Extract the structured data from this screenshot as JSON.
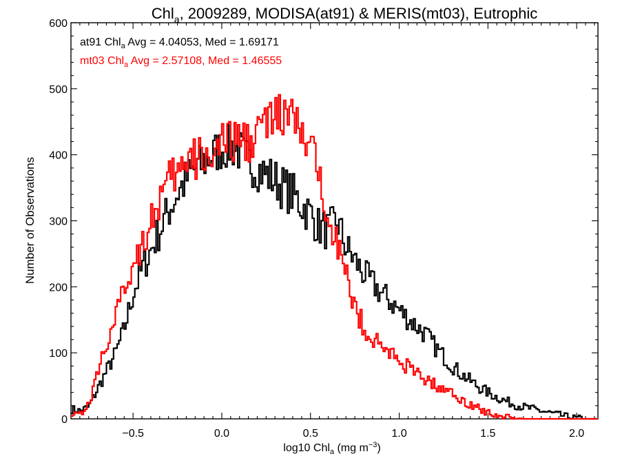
{
  "chart_data": {
    "type": "histogram",
    "title": {
      "prefix": "Chl",
      "sub": "a",
      "rest": ", 2009289, MODISA(at91) & MERIS(mt03), Eutrophic"
    },
    "xlabel": {
      "prefix": "log10 Chl",
      "sub": "a",
      "mid": " (mg m",
      "sup": "−3",
      "end": ")"
    },
    "ylabel": "Number of Observations",
    "xlim": [
      -0.85,
      2.12
    ],
    "ylim": [
      0,
      600
    ],
    "xticks": [
      -0.5,
      0.0,
      0.5,
      1.0,
      1.5,
      2.0
    ],
    "xtick_labels": [
      "−0.5",
      "0.0",
      "0.5",
      "1.0",
      "1.5",
      "2.0"
    ],
    "yticks": [
      0,
      100,
      200,
      300,
      400,
      500,
      600
    ],
    "ytick_labels": [
      "0",
      "100",
      "200",
      "300",
      "400",
      "500",
      "600"
    ],
    "legend_position": "top-left",
    "series": [
      {
        "name": "at91",
        "color": "#000000",
        "stats": {
          "prefix": "at91 Chl",
          "sub": "a",
          "rest": " Avg = 4.04053, Med = 1.69171"
        },
        "profile": [
          [
            -0.85,
            15
          ],
          [
            -0.8,
            12
          ],
          [
            -0.75,
            18
          ],
          [
            -0.7,
            45
          ],
          [
            -0.65,
            72
          ],
          [
            -0.6,
            98
          ],
          [
            -0.55,
            135
          ],
          [
            -0.5,
            190
          ],
          [
            -0.45,
            225
          ],
          [
            -0.4,
            255
          ],
          [
            -0.35,
            285
          ],
          [
            -0.3,
            315
          ],
          [
            -0.25,
            342
          ],
          [
            -0.2,
            362
          ],
          [
            -0.15,
            378
          ],
          [
            -0.1,
            388
          ],
          [
            -0.05,
            400
          ],
          [
            0.0,
            410
          ],
          [
            0.05,
            412
          ],
          [
            0.1,
            405
          ],
          [
            0.15,
            390
          ],
          [
            0.2,
            380
          ],
          [
            0.25,
            370
          ],
          [
            0.3,
            362
          ],
          [
            0.35,
            350
          ],
          [
            0.4,
            340
          ],
          [
            0.45,
            325
          ],
          [
            0.5,
            310
          ],
          [
            0.55,
            290
          ],
          [
            0.6,
            285
          ],
          [
            0.65,
            300
          ],
          [
            0.7,
            260
          ],
          [
            0.75,
            240
          ],
          [
            0.8,
            220
          ],
          [
            0.85,
            205
          ],
          [
            0.9,
            190
          ],
          [
            0.95,
            178
          ],
          [
            1.0,
            165
          ],
          [
            1.05,
            152
          ],
          [
            1.1,
            140
          ],
          [
            1.15,
            128
          ],
          [
            1.2,
            110
          ],
          [
            1.25,
            95
          ],
          [
            1.3,
            80
          ],
          [
            1.35,
            68
          ],
          [
            1.4,
            58
          ],
          [
            1.45,
            48
          ],
          [
            1.5,
            40
          ],
          [
            1.55,
            33
          ],
          [
            1.6,
            27
          ],
          [
            1.65,
            22
          ],
          [
            1.7,
            18
          ],
          [
            1.75,
            15
          ],
          [
            1.8,
            12
          ],
          [
            1.85,
            9
          ],
          [
            1.9,
            6
          ],
          [
            1.95,
            3
          ],
          [
            2.0,
            1
          ],
          [
            2.05,
            0
          ],
          [
            2.12,
            0
          ]
        ]
      },
      {
        "name": "mt03",
        "color": "#ff0000",
        "stats": {
          "prefix": "mt03 Chl",
          "sub": "a",
          "rest": " Avg = 2.57108, Med = 1.46555"
        },
        "profile": [
          [
            -0.85,
            10
          ],
          [
            -0.8,
            8
          ],
          [
            -0.75,
            20
          ],
          [
            -0.7,
            70
          ],
          [
            -0.65,
            115
          ],
          [
            -0.6,
            150
          ],
          [
            -0.55,
            195
          ],
          [
            -0.5,
            235
          ],
          [
            -0.45,
            270
          ],
          [
            -0.4,
            300
          ],
          [
            -0.35,
            330
          ],
          [
            -0.3,
            355
          ],
          [
            -0.25,
            372
          ],
          [
            -0.2,
            385
          ],
          [
            -0.15,
            392
          ],
          [
            -0.1,
            400
          ],
          [
            -0.05,
            405
          ],
          [
            0.0,
            412
          ],
          [
            0.05,
            418
          ],
          [
            0.1,
            422
          ],
          [
            0.15,
            420
          ],
          [
            0.2,
            440
          ],
          [
            0.25,
            448
          ],
          [
            0.3,
            455
          ],
          [
            0.35,
            460
          ],
          [
            0.4,
            455
          ],
          [
            0.45,
            430
          ],
          [
            0.5,
            405
          ],
          [
            0.55,
            370
          ],
          [
            0.6,
            320
          ],
          [
            0.65,
            270
          ],
          [
            0.7,
            215
          ],
          [
            0.75,
            170
          ],
          [
            0.8,
            140
          ],
          [
            0.85,
            120
          ],
          [
            0.9,
            110
          ],
          [
            0.95,
            100
          ],
          [
            1.0,
            90
          ],
          [
            1.05,
            78
          ],
          [
            1.1,
            68
          ],
          [
            1.15,
            60
          ],
          [
            1.2,
            52
          ],
          [
            1.25,
            45
          ],
          [
            1.3,
            38
          ],
          [
            1.35,
            30
          ],
          [
            1.4,
            22
          ],
          [
            1.45,
            15
          ],
          [
            1.5,
            10
          ],
          [
            1.55,
            6
          ],
          [
            1.6,
            3
          ],
          [
            1.65,
            1
          ],
          [
            1.7,
            0
          ],
          [
            2.12,
            0
          ]
        ]
      }
    ]
  }
}
